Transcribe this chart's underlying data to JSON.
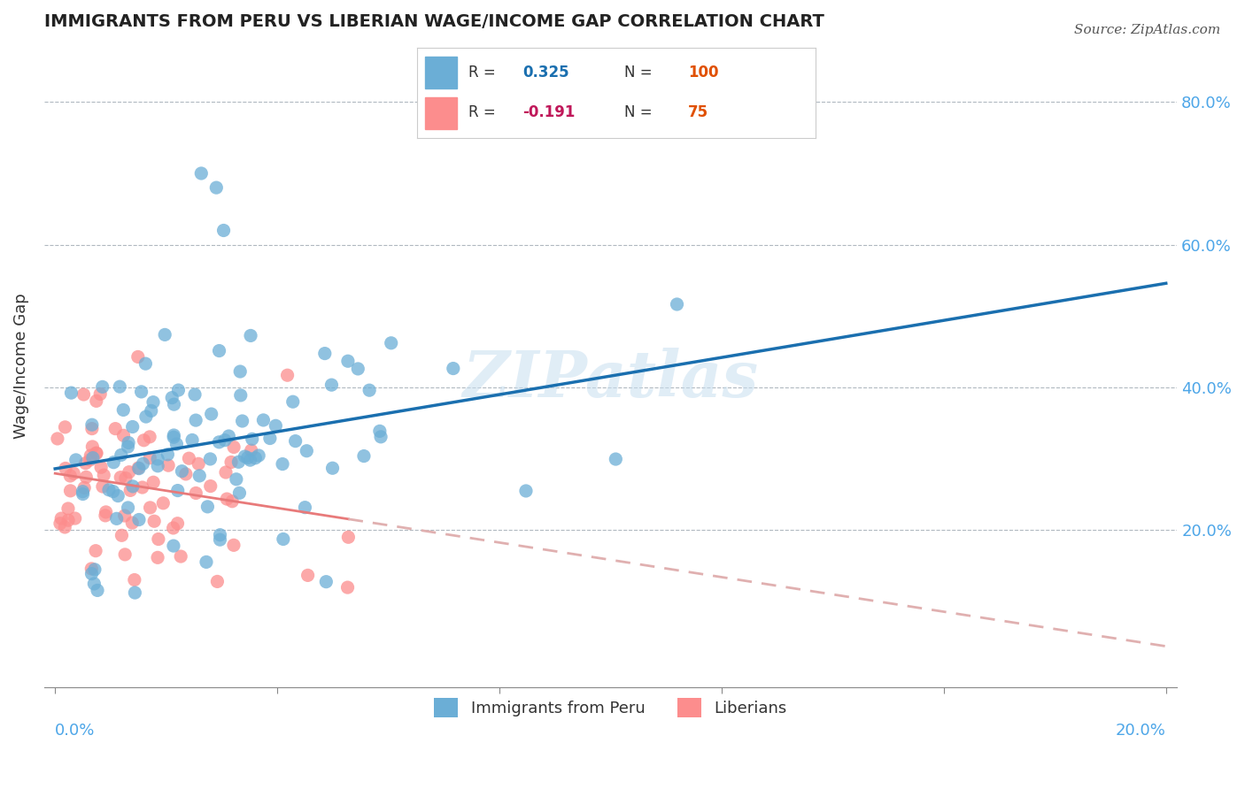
{
  "title": "IMMIGRANTS FROM PERU VS LIBERIAN WAGE/INCOME GAP CORRELATION CHART",
  "source": "Source: ZipAtlas.com",
  "ylabel": "Wage/Income Gap",
  "color_peru": "#6baed6",
  "color_liberia": "#fc8d8d",
  "color_peru_line": "#1a6faf",
  "color_liberia_line": "#e87a7a",
  "color_liberia_dash": "#e0b0b0",
  "watermark": "ZIPatlas",
  "legend_r1_label": "R = ",
  "legend_r1_val": "0.325",
  "legend_n1_label": "N = ",
  "legend_n1_val": "100",
  "legend_r2_label": "R = ",
  "legend_r2_val": "-0.191",
  "legend_n2_label": "N = ",
  "legend_n2_val": "75",
  "color_r_val": "#1a6faf",
  "color_n_val": "#e05000",
  "color_r2_val": "#c0185a",
  "ytick_color": "#4da6e8",
  "xtick_color": "#4da6e8"
}
